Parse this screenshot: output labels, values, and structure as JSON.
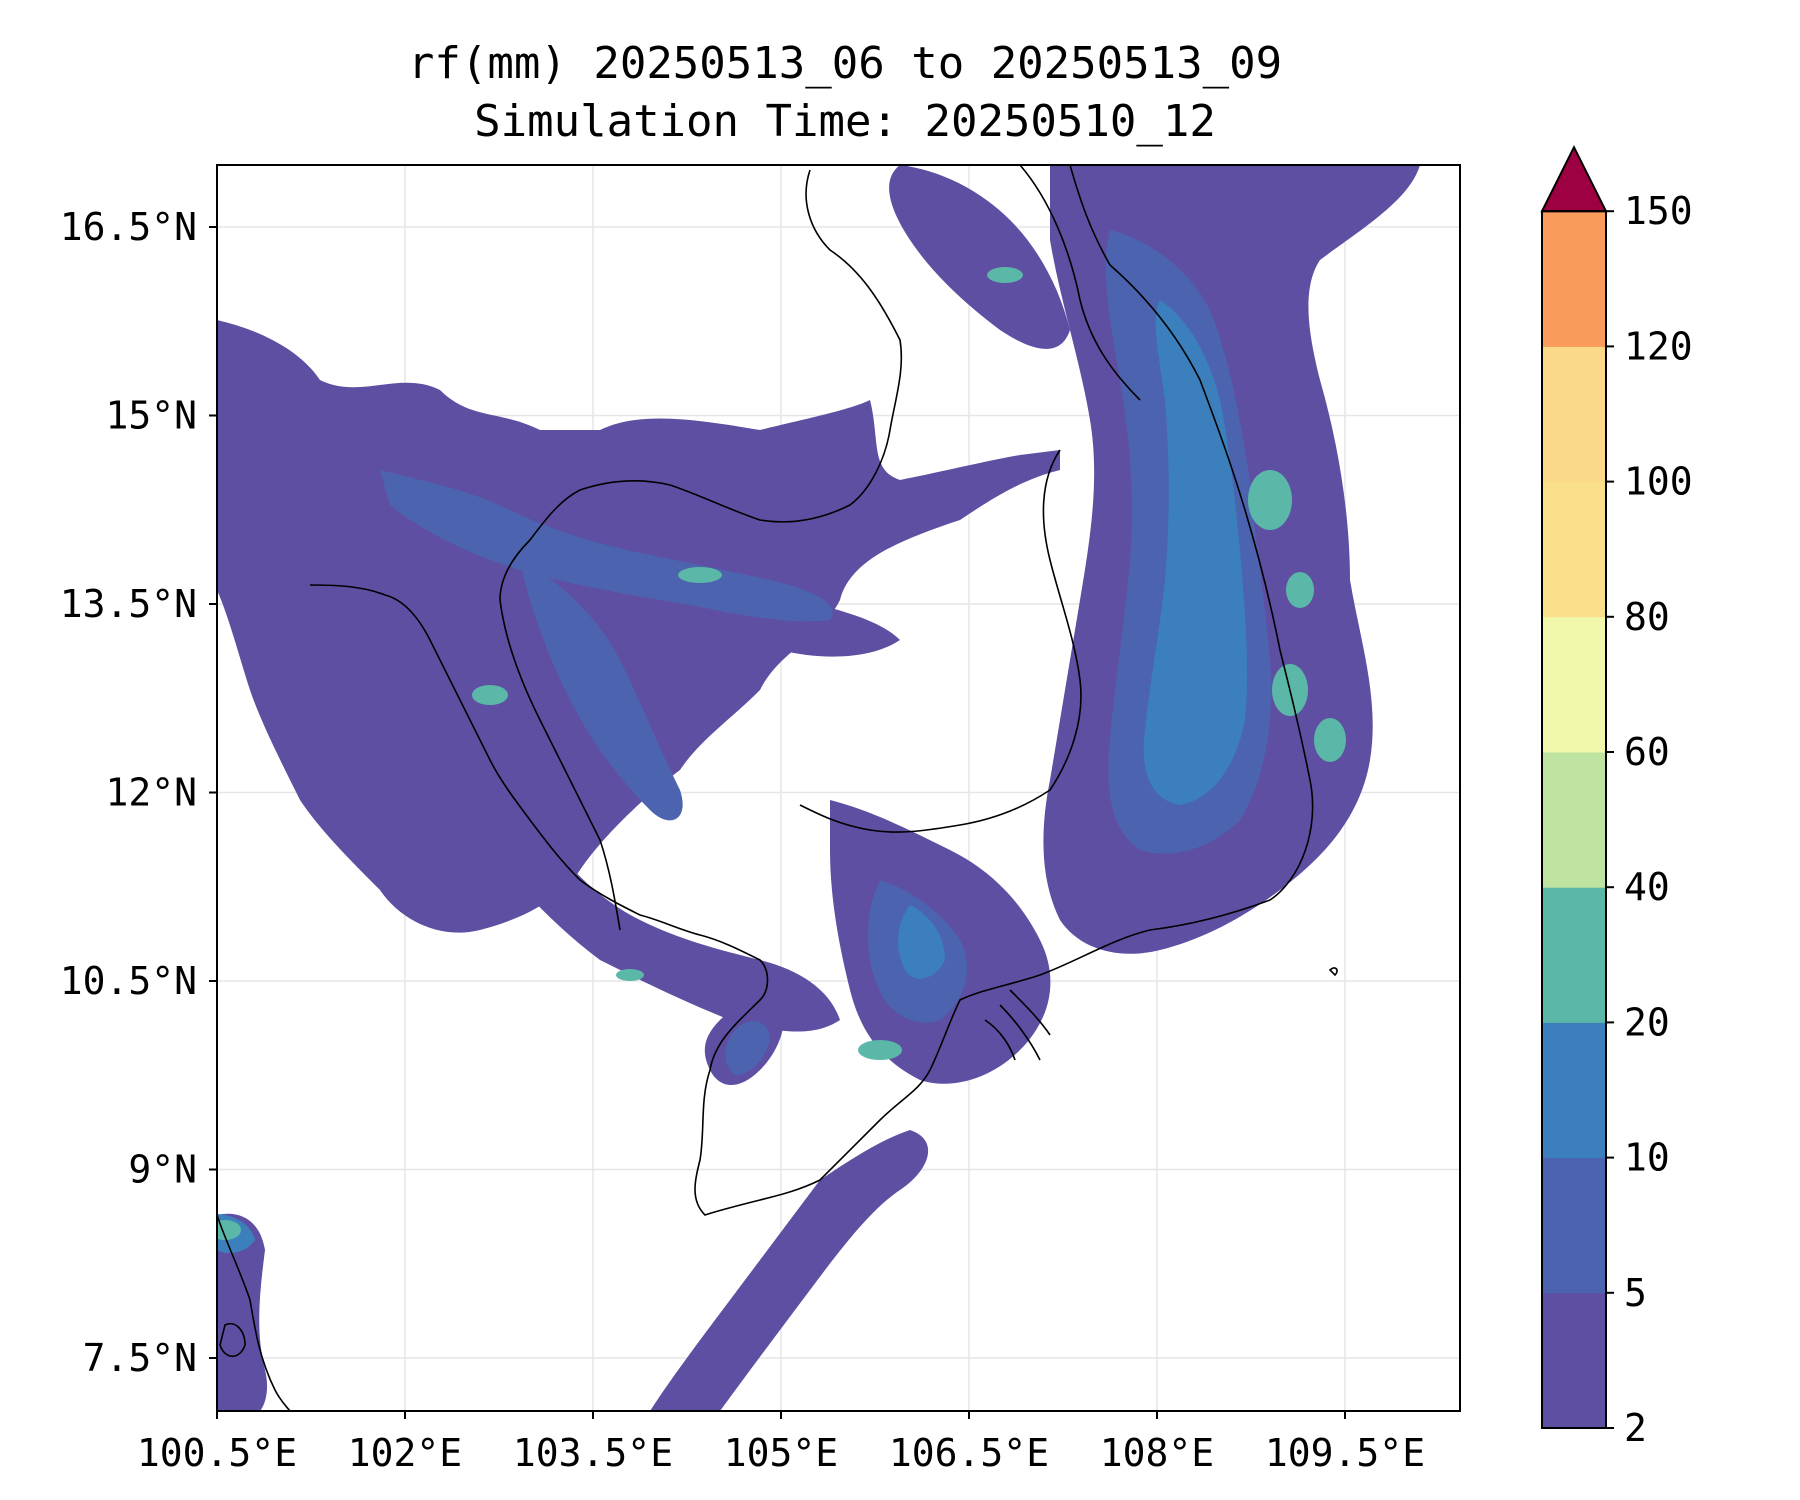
{
  "title": {
    "line1": "rf(mm) 20250513_06 to 20250513_09",
    "line2": "Simulation Time: 20250510_12"
  },
  "map": {
    "lon_ticks": [
      "100.5°E",
      "102°E",
      "103.5°E",
      "105°E",
      "106.5°E",
      "108°E",
      "109.5°E"
    ],
    "lat_ticks": [
      "16.5°N",
      "15°N",
      "13.5°N",
      "12°N",
      "10.5°N",
      "9°N",
      "7.5°N"
    ],
    "extent": {
      "lon": [
        100.5,
        110.4
      ],
      "lat": [
        6.6,
        16.6
      ]
    },
    "variable": "rf(mm)",
    "coastline_color": "#000000",
    "gridlines": true
  },
  "colorbar": {
    "levels": [
      "2",
      "5",
      "10",
      "20",
      "40",
      "60",
      "80",
      "100",
      "120",
      "150"
    ],
    "colors": [
      "#5e4fa2",
      "#4c63b0",
      "#3b80bd",
      "#5bb8a8",
      "#bfe4a2",
      "#f1f8ac",
      "#fae08b",
      "#fbd88a",
      "#f99b5b",
      "#d33d50"
    ],
    "extend_color": "#9e0142",
    "extend": "max"
  }
}
